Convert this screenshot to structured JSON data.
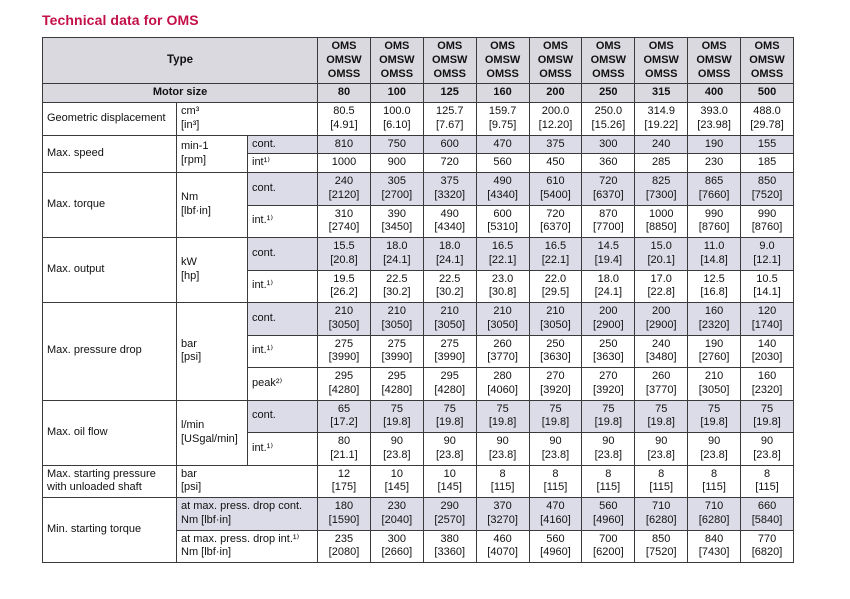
{
  "title": "Technical data for OMS",
  "colors": {
    "accent": "#c31048",
    "header_bg": "#d9d9df",
    "shaded_bg": "#dcdce8",
    "border": "#3a3a3a"
  },
  "table": {
    "type_label": "Type",
    "model_lines": [
      "OMS",
      "OMSW",
      "OMSS"
    ],
    "motor_size_label": "Motor size",
    "motor_sizes": [
      "80",
      "100",
      "125",
      "160",
      "200",
      "250",
      "315",
      "400",
      "500"
    ],
    "groups": [
      {
        "param": [
          "Geometric displacement"
        ],
        "unit": [
          "cm³",
          "[in³]"
        ],
        "unit_colspan": 2,
        "rows": [
          {
            "shaded": false,
            "v": [
              "80.5",
              "100.0",
              "125.7",
              "159.7",
              "200.0",
              "250.0",
              "314.9",
              "393.0",
              "488.0"
            ],
            "sub": [
              "[4.91]",
              "[6.10]",
              "[7.67]",
              "[9.75]",
              "[12.20]",
              "[15.26]",
              "[19.22]",
              "[23.98]",
              "[29.78]"
            ]
          }
        ]
      },
      {
        "param": [
          "Max. speed"
        ],
        "unit": [
          "min-1",
          "[rpm]"
        ],
        "rows": [
          {
            "cond": [
              "cont."
            ],
            "shaded": true,
            "v": [
              "810",
              "750",
              "600",
              "470",
              "375",
              "300",
              "240",
              "190",
              "155"
            ]
          },
          {
            "cond": [
              "int¹⁾"
            ],
            "shaded": false,
            "v": [
              "1000",
              "900",
              "720",
              "560",
              "450",
              "360",
              "285",
              "230",
              "185"
            ]
          }
        ]
      },
      {
        "param": [
          "Max. torque"
        ],
        "unit": [
          "Nm",
          "[lbf·in]"
        ],
        "rows": [
          {
            "cond": [
              "cont."
            ],
            "shaded": true,
            "v": [
              "240",
              "305",
              "375",
              "490",
              "610",
              "720",
              "825",
              "865",
              "850"
            ],
            "sub": [
              "[2120]",
              "[2700]",
              "[3320]",
              "[4340]",
              "[5400]",
              "[6370]",
              "[7300]",
              "[7660]",
              "[7520]"
            ]
          },
          {
            "cond": [
              "int.¹⁾"
            ],
            "shaded": false,
            "v": [
              "310",
              "390",
              "490",
              "600",
              "720",
              "870",
              "1000",
              "990",
              "990"
            ],
            "sub": [
              "[2740]",
              "[3450]",
              "[4340]",
              "[5310]",
              "[6370]",
              "[7700]",
              "[8850]",
              "[8760]",
              "[8760]"
            ]
          }
        ]
      },
      {
        "param": [
          "Max. output"
        ],
        "unit": [
          "kW",
          "[hp]"
        ],
        "rows": [
          {
            "cond": [
              "cont."
            ],
            "shaded": true,
            "v": [
              "15.5",
              "18.0",
              "18.0",
              "16.5",
              "16.5",
              "14.5",
              "15.0",
              "11.0",
              "9.0"
            ],
            "sub": [
              "[20.8]",
              "[24.1]",
              "[24.1]",
              "[22.1]",
              "[22.1]",
              "[19.4]",
              "[20.1]",
              "[14.8]",
              "[12.1]"
            ]
          },
          {
            "cond": [
              "int.¹⁾"
            ],
            "shaded": false,
            "v": [
              "19.5",
              "22.5",
              "22.5",
              "23.0",
              "22.0",
              "18.0",
              "17.0",
              "12.5",
              "10.5"
            ],
            "sub": [
              "[26.2]",
              "[30.2]",
              "[30.2]",
              "[30.8]",
              "[29.5]",
              "[24.1]",
              "[22.8]",
              "[16.8]",
              "[14.1]"
            ]
          }
        ]
      },
      {
        "param": [
          "Max. pressure drop"
        ],
        "unit": [
          "bar",
          "[psi]"
        ],
        "rows": [
          {
            "cond": [
              "cont."
            ],
            "shaded": true,
            "v": [
              "210",
              "210",
              "210",
              "210",
              "210",
              "200",
              "200",
              "160",
              "120"
            ],
            "sub": [
              "[3050]",
              "[3050]",
              "[3050]",
              "[3050]",
              "[3050]",
              "[2900]",
              "[2900]",
              "[2320]",
              "[1740]"
            ]
          },
          {
            "cond": [
              "int.¹⁾"
            ],
            "shaded": false,
            "v": [
              "275",
              "275",
              "275",
              "260",
              "250",
              "250",
              "240",
              "190",
              "140"
            ],
            "sub": [
              "[3990]",
              "[3990]",
              "[3990]",
              "[3770]",
              "[3630]",
              "[3630]",
              "[3480]",
              "[2760]",
              "[2030]"
            ]
          },
          {
            "cond": [
              "peak²⁾"
            ],
            "shaded": false,
            "v": [
              "295",
              "295",
              "295",
              "280",
              "270",
              "270",
              "260",
              "210",
              "160"
            ],
            "sub": [
              "[4280]",
              "[4280]",
              "[4280]",
              "[4060]",
              "[3920]",
              "[3920]",
              "[3770]",
              "[3050]",
              "[2320]"
            ]
          }
        ]
      },
      {
        "param": [
          "Max. oil flow"
        ],
        "unit": [
          "l/min",
          "[USgal/min]"
        ],
        "rows": [
          {
            "cond": [
              "cont."
            ],
            "shaded": true,
            "v": [
              "65",
              "75",
              "75",
              "75",
              "75",
              "75",
              "75",
              "75",
              "75"
            ],
            "sub": [
              "[17.2]",
              "[19.8]",
              "[19.8]",
              "[19.8]",
              "[19.8]",
              "[19.8]",
              "[19.8]",
              "[19.8]",
              "[19.8]"
            ]
          },
          {
            "cond": [
              "int.¹⁾"
            ],
            "shaded": false,
            "v": [
              "80",
              "90",
              "90",
              "90",
              "90",
              "90",
              "90",
              "90",
              "90"
            ],
            "sub": [
              "[21.1]",
              "[23.8]",
              "[23.8]",
              "[23.8]",
              "[23.8]",
              "[23.8]",
              "[23.8]",
              "[23.8]",
              "[23.8]"
            ]
          }
        ]
      },
      {
        "param": [
          "Max. starting pressure",
          "with unloaded shaft"
        ],
        "unit": [
          "bar",
          "[psi]"
        ],
        "unit_colspan": 2,
        "rows": [
          {
            "shaded": false,
            "v": [
              "12",
              "10",
              "10",
              "8",
              "8",
              "8",
              "8",
              "8",
              "8"
            ],
            "sub": [
              "[175]",
              "[145]",
              "[145]",
              "[115]",
              "[115]",
              "[115]",
              "[115]",
              "[115]",
              "[115]"
            ]
          }
        ]
      },
      {
        "param": [
          "Min. starting torque"
        ],
        "rows": [
          {
            "cond": [
              "at max. press. drop cont.",
              "Nm [lbf·in]"
            ],
            "cond_colspan": 2,
            "shaded": true,
            "v": [
              "180",
              "230",
              "290",
              "370",
              "470",
              "560",
              "710",
              "710",
              "660"
            ],
            "sub": [
              "[1590]",
              "[2040]",
              "[2570]",
              "[3270]",
              "[4160]",
              "[4960]",
              "[6280]",
              "[6280]",
              "[5840]"
            ]
          },
          {
            "cond": [
              "at max. press. drop int.¹⁾",
              "Nm [lbf·in]"
            ],
            "cond_colspan": 2,
            "shaded": false,
            "v": [
              "235",
              "300",
              "380",
              "460",
              "560",
              "700",
              "850",
              "840",
              "770"
            ],
            "sub": [
              "[2080]",
              "[2660]",
              "[3360]",
              "[4070]",
              "[4960]",
              "[6200]",
              "[7520]",
              "[7430]",
              "[6820]"
            ]
          }
        ]
      }
    ]
  }
}
